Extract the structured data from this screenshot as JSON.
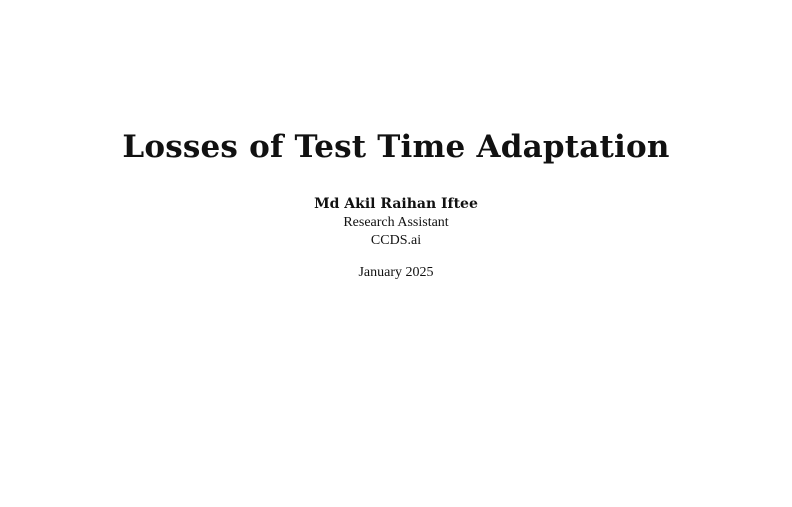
{
  "document": {
    "title": "Losses of Test Time Adaptation",
    "author": {
      "name": "Md Akil Raihan Iftee",
      "role": "Research Assistant",
      "affiliation": "CCDS.ai"
    },
    "date": "January 2025"
  }
}
